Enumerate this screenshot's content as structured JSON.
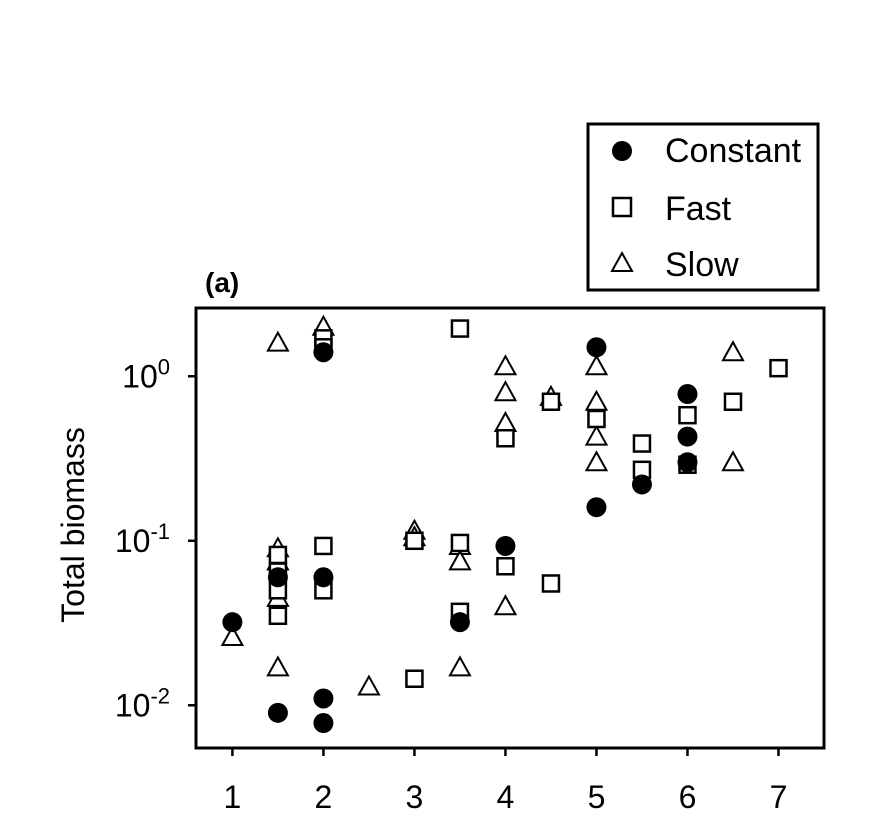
{
  "chart_data": {
    "type": "scatter",
    "panel_label": "(a)",
    "title": "",
    "xlabel": "",
    "ylabel": "Total biomass",
    "xlim": [
      0.6,
      7.5
    ],
    "ylim": [
      0.0055,
      2.6
    ],
    "yscale": "log",
    "xticks": [
      1,
      2,
      3,
      4,
      5,
      6,
      7
    ],
    "xtick_labels": [
      "1",
      "2",
      "3",
      "4",
      "5",
      "6",
      "7"
    ],
    "yticks": [
      {
        "value": 1,
        "base": "10",
        "exp": "0"
      },
      {
        "value": 0.1,
        "base": "10",
        "exp": "-1"
      },
      {
        "value": 0.01,
        "base": "10",
        "exp": "-2"
      }
    ],
    "grid": false,
    "legend_position": "top-right, above plot",
    "series": [
      {
        "name": "Constant",
        "marker": "filled-circle",
        "points": [
          {
            "x": 1,
            "y": 0.032
          },
          {
            "x": 1.5,
            "y": 0.06
          },
          {
            "x": 1.5,
            "y": 0.009
          },
          {
            "x": 2,
            "y": 1.4
          },
          {
            "x": 2,
            "y": 0.06
          },
          {
            "x": 2,
            "y": 0.011
          },
          {
            "x": 2,
            "y": 0.0078
          },
          {
            "x": 3.5,
            "y": 0.032
          },
          {
            "x": 4,
            "y": 0.093
          },
          {
            "x": 5,
            "y": 1.5
          },
          {
            "x": 5,
            "y": 0.16
          },
          {
            "x": 5.5,
            "y": 0.22
          },
          {
            "x": 6,
            "y": 0.78
          },
          {
            "x": 6,
            "y": 0.43
          },
          {
            "x": 6,
            "y": 0.3
          }
        ]
      },
      {
        "name": "Fast",
        "marker": "open-square",
        "points": [
          {
            "x": 1.5,
            "y": 0.082
          },
          {
            "x": 1.5,
            "y": 0.065
          },
          {
            "x": 1.5,
            "y": 0.05
          },
          {
            "x": 1.5,
            "y": 0.035
          },
          {
            "x": 2,
            "y": 1.7
          },
          {
            "x": 2,
            "y": 1.5
          },
          {
            "x": 2,
            "y": 0.093
          },
          {
            "x": 2,
            "y": 0.05
          },
          {
            "x": 3,
            "y": 0.1
          },
          {
            "x": 3,
            "y": 0.0145
          },
          {
            "x": 3.5,
            "y": 1.95
          },
          {
            "x": 3.5,
            "y": 0.097
          },
          {
            "x": 3.5,
            "y": 0.037
          },
          {
            "x": 4,
            "y": 0.42
          },
          {
            "x": 4,
            "y": 0.07
          },
          {
            "x": 4.5,
            "y": 0.7
          },
          {
            "x": 4.5,
            "y": 0.055
          },
          {
            "x": 5,
            "y": 0.55
          },
          {
            "x": 5.5,
            "y": 0.39
          },
          {
            "x": 5.5,
            "y": 0.27
          },
          {
            "x": 6,
            "y": 0.58
          },
          {
            "x": 6,
            "y": 0.29
          },
          {
            "x": 6.5,
            "y": 0.7
          },
          {
            "x": 7,
            "y": 1.12
          }
        ]
      },
      {
        "name": "Slow",
        "marker": "open-triangle",
        "points": [
          {
            "x": 1,
            "y": 0.026
          },
          {
            "x": 1.5,
            "y": 1.6
          },
          {
            "x": 1.5,
            "y": 0.09
          },
          {
            "x": 1.5,
            "y": 0.075
          },
          {
            "x": 1.5,
            "y": 0.045
          },
          {
            "x": 1.5,
            "y": 0.017
          },
          {
            "x": 2,
            "y": 2.0
          },
          {
            "x": 2.5,
            "y": 0.013
          },
          {
            "x": 3,
            "y": 0.115
          },
          {
            "x": 3,
            "y": 0.105
          },
          {
            "x": 3.5,
            "y": 0.093
          },
          {
            "x": 3.5,
            "y": 0.075
          },
          {
            "x": 3.5,
            "y": 0.017
          },
          {
            "x": 4,
            "y": 1.15
          },
          {
            "x": 4,
            "y": 0.8
          },
          {
            "x": 4,
            "y": 0.52
          },
          {
            "x": 4,
            "y": 0.04
          },
          {
            "x": 4.5,
            "y": 0.75
          },
          {
            "x": 5,
            "y": 1.15
          },
          {
            "x": 5,
            "y": 0.7
          },
          {
            "x": 5,
            "y": 0.43
          },
          {
            "x": 5,
            "y": 0.3
          },
          {
            "x": 6.5,
            "y": 1.4
          },
          {
            "x": 6.5,
            "y": 0.3
          }
        ]
      }
    ]
  }
}
